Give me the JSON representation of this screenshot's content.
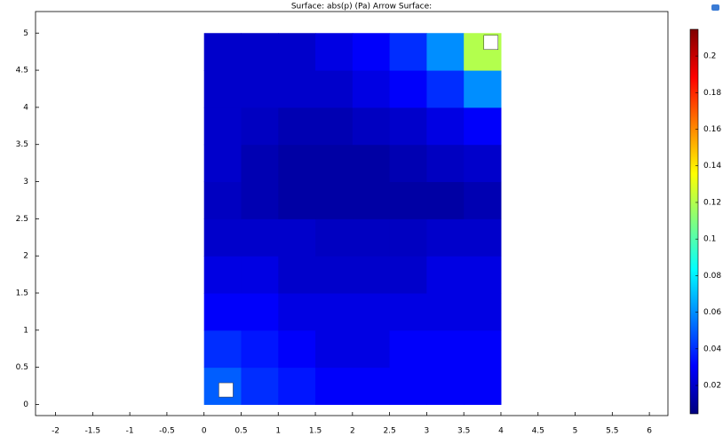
{
  "chart_data": {
    "type": "heatmap",
    "title": "Surface: abs(p) (Pa)  Arrow Surface:",
    "x_edges": [
      0,
      0.5,
      1,
      1.5,
      2,
      2.5,
      3,
      3.5,
      4
    ],
    "y_edges": [
      0,
      0.5,
      1,
      1.5,
      2,
      2.5,
      3,
      3.5,
      4,
      4.5,
      5
    ],
    "values": [
      [
        0.05,
        0.04,
        0.035,
        0.03,
        0.03,
        0.03,
        0.03,
        0.03
      ],
      [
        0.04,
        0.035,
        0.03,
        0.025,
        0.025,
        0.03,
        0.03,
        0.03
      ],
      [
        0.03,
        0.03,
        0.025,
        0.025,
        0.025,
        0.025,
        0.025,
        0.025
      ],
      [
        0.025,
        0.025,
        0.02,
        0.02,
        0.02,
        0.02,
        0.025,
        0.025
      ],
      [
        0.02,
        0.02,
        0.02,
        0.018,
        0.018,
        0.018,
        0.02,
        0.02
      ],
      [
        0.018,
        0.015,
        0.012,
        0.012,
        0.012,
        0.012,
        0.012,
        0.015
      ],
      [
        0.02,
        0.015,
        0.012,
        0.012,
        0.012,
        0.015,
        0.018,
        0.02
      ],
      [
        0.02,
        0.018,
        0.015,
        0.015,
        0.018,
        0.02,
        0.025,
        0.03
      ],
      [
        0.02,
        0.02,
        0.02,
        0.02,
        0.025,
        0.03,
        0.04,
        0.06
      ],
      [
        0.02,
        0.02,
        0.02,
        0.025,
        0.03,
        0.04,
        0.06,
        0.12
      ]
    ],
    "xlim": [
      -2.27,
      6.25
    ],
    "ylim": [
      -0.15,
      5.29
    ],
    "xticks": [
      -2,
      -1.5,
      -1,
      -0.5,
      0,
      0.5,
      1,
      1.5,
      2,
      2.5,
      3,
      3.5,
      4,
      4.5,
      5,
      5.5,
      6
    ],
    "yticks": [
      0,
      0.5,
      1,
      1.5,
      2,
      2.5,
      3,
      3.5,
      4,
      4.5,
      5
    ],
    "clim": [
      0.0045,
      0.2146
    ],
    "cticks": [
      0.02,
      0.04,
      0.06,
      0.08,
      0.1,
      0.12,
      0.14,
      0.16,
      0.18,
      0.2
    ],
    "colormap": [
      "#00007f",
      "#0000ff",
      "#0080ff",
      "#00ffff",
      "#80ff80",
      "#ffff00",
      "#ff8000",
      "#ff0000",
      "#7f0000"
    ]
  }
}
